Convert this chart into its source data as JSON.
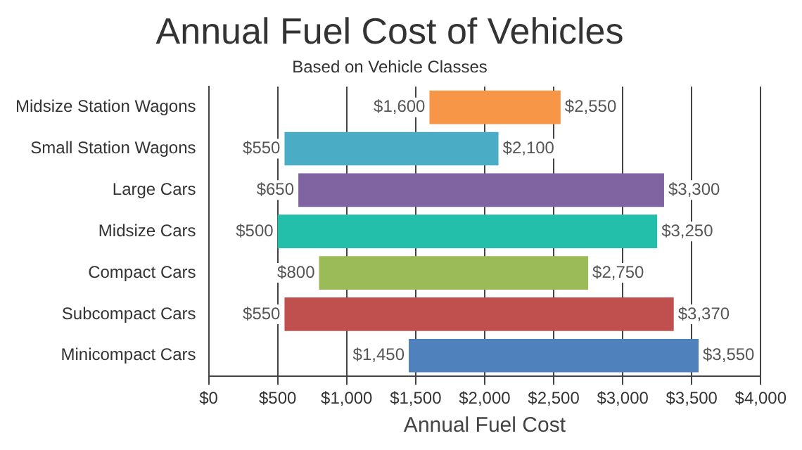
{
  "chart_data": {
    "type": "bar",
    "orientation": "horizontal",
    "title": "Annual Fuel Cost of Vehicles",
    "subtitle": "Based on Vehicle Classes",
    "xlabel": "Annual Fuel Cost",
    "categories": [
      "Midsize Station Wagons",
      "Small Station Wagons",
      "Large Cars",
      "Midsize Cars",
      "Compact Cars",
      "Subcompact Cars",
      "Minicompact Cars"
    ],
    "base": [
      1600,
      550,
      650,
      500,
      800,
      550,
      1450
    ],
    "values": [
      950,
      1550,
      2650,
      2750,
      1950,
      2820,
      2100
    ],
    "colors": [
      "#f79646",
      "#4bacc6",
      "#8064a2",
      "#23bfaa",
      "#9bbb59",
      "#c0504d",
      "#4f81bd"
    ],
    "xlim": [
      0,
      4000
    ],
    "xticks": [
      {
        "value": 0,
        "label": "$0"
      },
      {
        "value": 500,
        "label": "$500"
      },
      {
        "value": 1000,
        "label": "$1,000"
      },
      {
        "value": 1500,
        "label": "$1,500"
      },
      {
        "value": 2000,
        "label": "$2,000"
      },
      {
        "value": 2500,
        "label": "$2,500"
      },
      {
        "value": 3000,
        "label": "$3,000"
      },
      {
        "value": 3500,
        "label": "$3,500"
      },
      {
        "value": 4000,
        "label": "$4,000"
      }
    ],
    "grid": "x",
    "annotations": [
      {
        "text": "$1,600",
        "x": 1600,
        "y": "Midsize Station Wagons"
      },
      {
        "text": "$2,550",
        "x": 2550,
        "y": "Midsize Station Wagons"
      },
      {
        "text": "$550",
        "x": 550,
        "y": "Small Station Wagons"
      },
      {
        "text": "$2,100",
        "x": 2100,
        "y": "Small Station Wagons"
      },
      {
        "text": "$650",
        "x": 650,
        "y": "Large Cars"
      },
      {
        "text": "$3,300",
        "x": 3300,
        "y": "Large Cars"
      },
      {
        "text": "$500",
        "x": 500,
        "y": "Midsize Cars"
      },
      {
        "text": "$3,250",
        "x": 3250,
        "y": "Midsize Cars"
      },
      {
        "text": "$800",
        "x": 800,
        "y": "Compact Cars"
      },
      {
        "text": "$2,750",
        "x": 2750,
        "y": "Compact Cars"
      },
      {
        "text": "$550",
        "x": 550,
        "y": "Subcompact Cars"
      },
      {
        "text": "$3,370",
        "x": 3370,
        "y": "Subcompact Cars"
      },
      {
        "text": "$1,450",
        "x": 1450,
        "y": "Minicompact Cars"
      },
      {
        "text": "$3,550",
        "x": 3550,
        "y": "Minicompact Cars"
      }
    ]
  }
}
